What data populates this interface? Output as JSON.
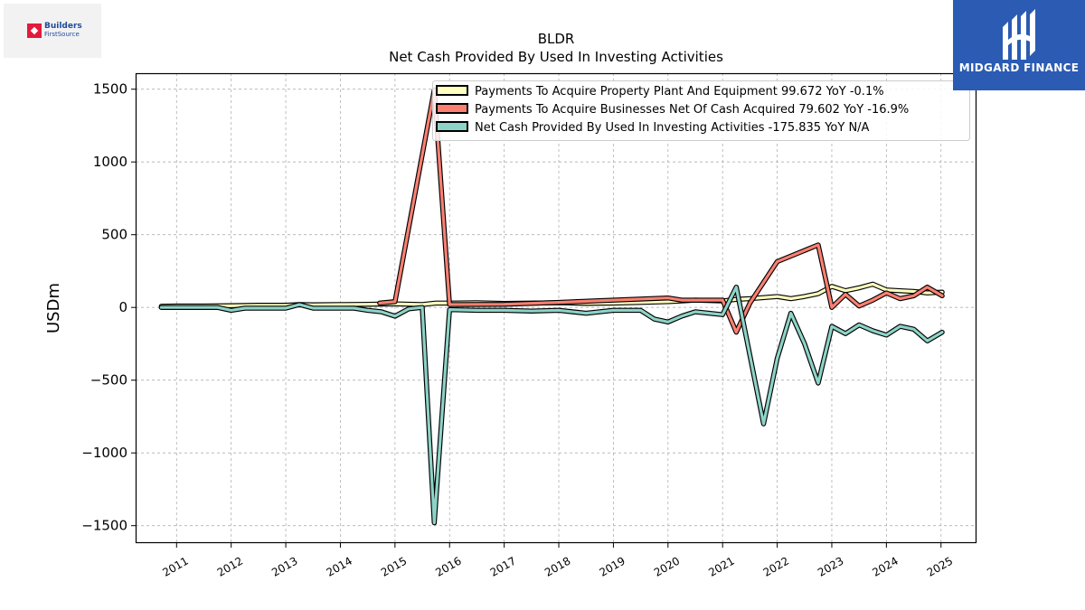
{
  "chart_data": {
    "type": "line",
    "title": "BLDR",
    "subtitle": "Net Cash Provided By Used In Investing Activities",
    "ylabel": "USDm",
    "xlabel": "",
    "ylim": [
      -1620,
      1610
    ],
    "xlim": [
      2010.25,
      2025.65
    ],
    "yticks": [
      -1500,
      -1000,
      -500,
      0,
      500,
      1000,
      1500
    ],
    "ytick_labels": [
      "−1500",
      "−1000",
      "−500",
      "0",
      "500",
      "1000",
      "1500"
    ],
    "xticks": [
      2011,
      2012,
      2013,
      2014,
      2015,
      2016,
      2017,
      2018,
      2019,
      2020,
      2021,
      2022,
      2023,
      2024,
      2025
    ],
    "xtick_labels": [
      "2011",
      "2012",
      "2013",
      "2014",
      "2015",
      "2016",
      "2017",
      "2018",
      "2019",
      "2020",
      "2021",
      "2022",
      "2023",
      "2024",
      "2025"
    ],
    "grid": true,
    "legend_position": "top-right",
    "series": [
      {
        "name": "Payments To Acquire Property Plant And Equipment",
        "legend_label": "Payments To Acquire Property Plant And Equipment  99.672 YoY -0.1%",
        "color": "#ffffbf",
        "points": [
          [
            2010.72,
            8
          ],
          [
            2011.0,
            10
          ],
          [
            2011.5,
            10
          ],
          [
            2012.0,
            12
          ],
          [
            2012.5,
            15
          ],
          [
            2013.0,
            15
          ],
          [
            2013.25,
            20
          ],
          [
            2013.5,
            18
          ],
          [
            2014.0,
            20
          ],
          [
            2014.5,
            22
          ],
          [
            2015.0,
            25
          ],
          [
            2015.5,
            20
          ],
          [
            2015.75,
            30
          ],
          [
            2016.0,
            30
          ],
          [
            2016.5,
            32
          ],
          [
            2017.0,
            28
          ],
          [
            2017.5,
            30
          ],
          [
            2018.0,
            32
          ],
          [
            2018.5,
            28
          ],
          [
            2019.0,
            30
          ],
          [
            2019.5,
            35
          ],
          [
            2020.0,
            40
          ],
          [
            2020.25,
            45
          ],
          [
            2020.5,
            50
          ],
          [
            2021.0,
            45
          ],
          [
            2021.25,
            55
          ],
          [
            2021.5,
            60
          ],
          [
            2022.0,
            75
          ],
          [
            2022.25,
            60
          ],
          [
            2022.5,
            75
          ],
          [
            2022.75,
            95
          ],
          [
            2023.0,
            145
          ],
          [
            2023.25,
            115
          ],
          [
            2023.5,
            135
          ],
          [
            2023.75,
            160
          ],
          [
            2024.0,
            120
          ],
          [
            2024.25,
            115
          ],
          [
            2024.5,
            110
          ],
          [
            2024.75,
            100
          ],
          [
            2025.02,
            105
          ]
        ]
      },
      {
        "name": "Payments To Acquire Businesses Net Of Cash Acquired",
        "legend_label": "Payments To Acquire Businesses Net Of Cash Acquired  79.602 YoY -16.9%",
        "color": "#fb8072",
        "points": [
          [
            2014.72,
            30
          ],
          [
            2015.0,
            40
          ],
          [
            2015.72,
            1495
          ],
          [
            2016.0,
            20
          ],
          [
            2017.0,
            22
          ],
          [
            2018.0,
            35
          ],
          [
            2019.0,
            50
          ],
          [
            2020.0,
            65
          ],
          [
            2020.25,
            50
          ],
          [
            2021.0,
            50
          ],
          [
            2021.25,
            -170
          ],
          [
            2021.5,
            30
          ],
          [
            2022.0,
            315
          ],
          [
            2022.75,
            430
          ],
          [
            2023.0,
            0
          ],
          [
            2023.25,
            90
          ],
          [
            2023.5,
            10
          ],
          [
            2023.75,
            50
          ],
          [
            2024.0,
            100
          ],
          [
            2024.25,
            60
          ],
          [
            2024.5,
            80
          ],
          [
            2024.75,
            140
          ],
          [
            2025.02,
            80
          ]
        ]
      },
      {
        "name": "Net Cash Provided By Used In Investing Activities",
        "legend_label": "Net Cash Provided By Used In Investing Activities  -175.835 YoY N/A",
        "color": "#8dd3c7",
        "points": [
          [
            2010.72,
            0
          ],
          [
            2011.0,
            0
          ],
          [
            2011.75,
            0
          ],
          [
            2012.0,
            -20
          ],
          [
            2012.25,
            -5
          ],
          [
            2013.0,
            -5
          ],
          [
            2013.25,
            20
          ],
          [
            2013.5,
            -5
          ],
          [
            2014.0,
            -5
          ],
          [
            2014.25,
            -5
          ],
          [
            2014.5,
            -20
          ],
          [
            2014.75,
            -30
          ],
          [
            2015.0,
            -60
          ],
          [
            2015.25,
            -10
          ],
          [
            2015.5,
            0
          ],
          [
            2015.72,
            -1480
          ],
          [
            2016.0,
            -15
          ],
          [
            2016.5,
            -20
          ],
          [
            2017.0,
            -20
          ],
          [
            2017.5,
            -25
          ],
          [
            2018.0,
            -20
          ],
          [
            2018.5,
            -40
          ],
          [
            2019.0,
            -20
          ],
          [
            2019.5,
            -20
          ],
          [
            2019.75,
            -80
          ],
          [
            2020.0,
            -100
          ],
          [
            2020.25,
            -60
          ],
          [
            2020.5,
            -30
          ],
          [
            2021.0,
            -50
          ],
          [
            2021.25,
            140
          ],
          [
            2021.75,
            -800
          ],
          [
            2022.0,
            -350
          ],
          [
            2022.25,
            -40
          ],
          [
            2022.5,
            -250
          ],
          [
            2022.75,
            -520
          ],
          [
            2023.0,
            -130
          ],
          [
            2023.25,
            -180
          ],
          [
            2023.5,
            -120
          ],
          [
            2023.75,
            -160
          ],
          [
            2024.0,
            -190
          ],
          [
            2024.25,
            -130
          ],
          [
            2024.5,
            -150
          ],
          [
            2024.75,
            -230
          ],
          [
            2025.02,
            -170
          ]
        ]
      }
    ]
  },
  "logos": {
    "left": {
      "line1": "Builders",
      "line2": "FirstSource",
      "accent": "#e31b3b",
      "brand": "#1c4c9c"
    },
    "right": {
      "name": "MIDGARD FINANCE",
      "background": "#2b5bb3",
      "icon": "midgard-logo-icon"
    }
  }
}
